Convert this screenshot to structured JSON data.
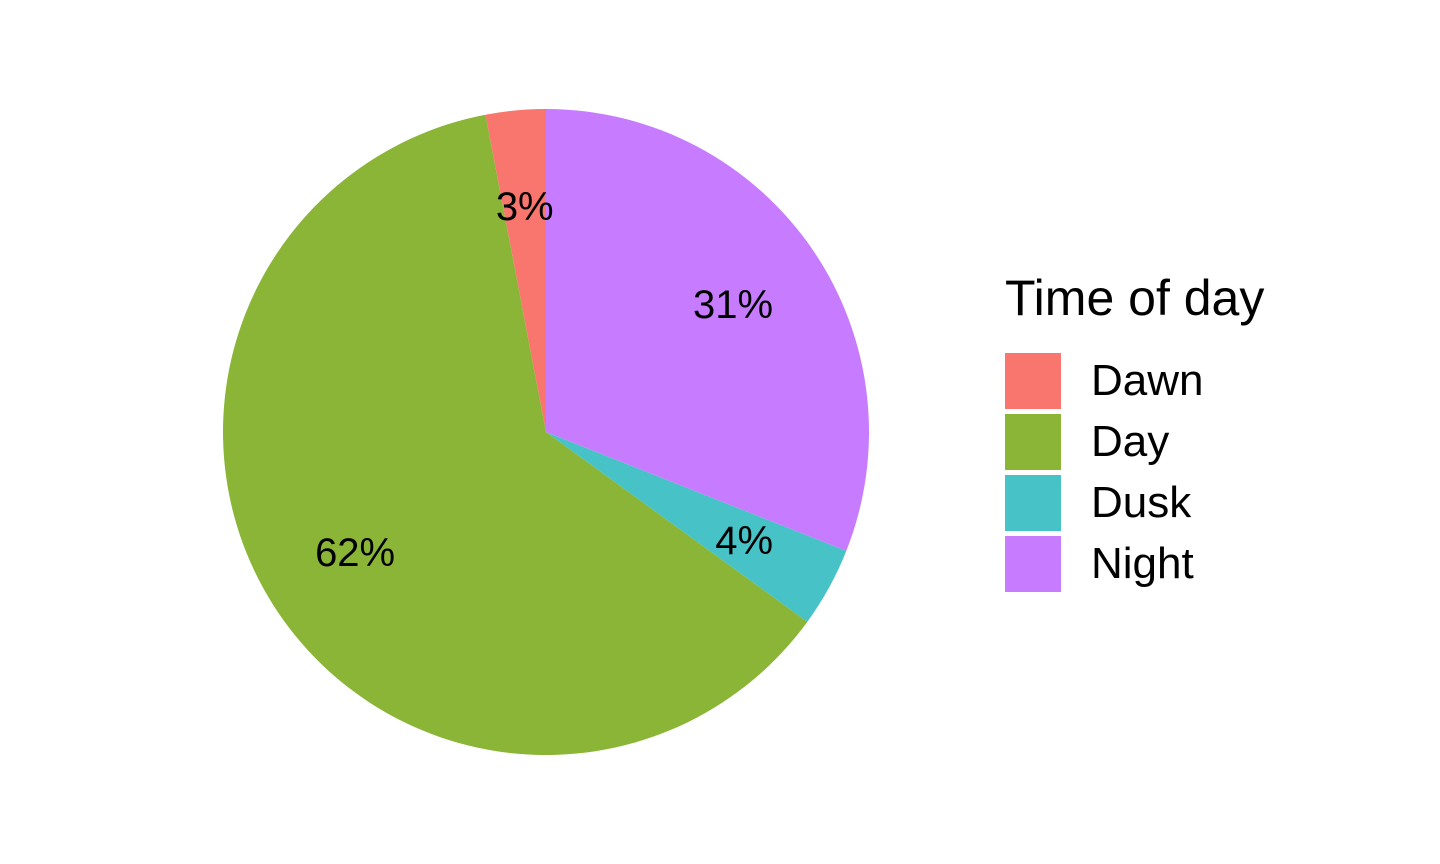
{
  "chart_data": {
    "type": "pie",
    "legend_title": "Time of day",
    "legend_position": "right",
    "slices": [
      {
        "name": "Dawn",
        "value": 3,
        "label": "3%",
        "color": "#F8766D"
      },
      {
        "name": "Day",
        "value": 62,
        "label": "62%",
        "color": "#8AB536"
      },
      {
        "name": "Dusk",
        "value": 4,
        "label": "4%",
        "color": "#47C2C6"
      },
      {
        "name": "Night",
        "value": 31,
        "label": "31%",
        "color": "#C77CFF"
      }
    ]
  }
}
